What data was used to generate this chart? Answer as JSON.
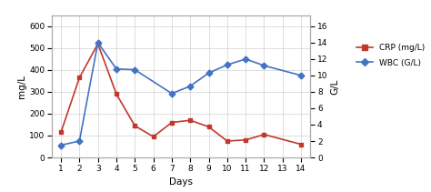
{
  "days_crp": [
    1,
    2,
    3,
    4,
    5,
    6,
    7,
    8,
    9,
    10,
    11,
    12,
    14
  ],
  "crp_values": [
    115,
    365,
    520,
    290,
    145,
    95,
    160,
    170,
    140,
    75,
    80,
    105,
    60
  ],
  "days_wbc": [
    1,
    2,
    3,
    4,
    5,
    7,
    8,
    9,
    10,
    11,
    12,
    14
  ],
  "wbc_values": [
    1.5,
    2.0,
    14.0,
    10.8,
    10.7,
    7.8,
    8.7,
    10.3,
    11.3,
    12.0,
    11.2,
    10.0
  ],
  "crp_color": "#c0392b",
  "wbc_color": "#4472c4",
  "ylabel_left": "mg/L",
  "ylabel_right": "G/L",
  "xlabel": "Days",
  "ylim_left": [
    0,
    650
  ],
  "ylim_right": [
    0,
    17.33
  ],
  "yticks_left": [
    0,
    100,
    200,
    300,
    400,
    500,
    600
  ],
  "yticks_right": [
    0,
    2,
    4,
    6,
    8,
    10,
    12,
    14,
    16
  ],
  "xticks": [
    1,
    2,
    3,
    4,
    5,
    6,
    7,
    8,
    9,
    10,
    11,
    12,
    13,
    14
  ],
  "xlim": [
    0.5,
    14.5
  ],
  "legend_crp": "CRP (mg/L)",
  "legend_wbc": "WBC (G/L)",
  "bg_color": "#ffffff",
  "grid_color": "#d0d0d0",
  "figsize": [
    4.74,
    2.11
  ],
  "dpi": 100
}
